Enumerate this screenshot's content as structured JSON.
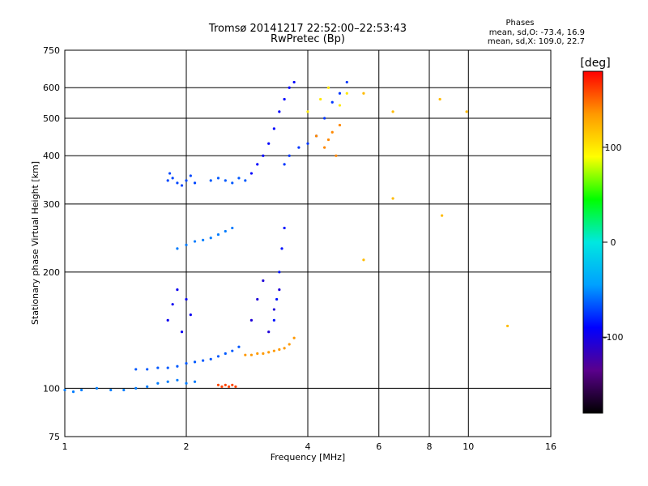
{
  "chart_data": {
    "type": "scatter",
    "title": "Tromsø 20141217 22:52:00–22:53:43",
    "subtitle": "RwPretec (Bp)",
    "xlabel": "Frequency [MHz]",
    "ylabel": "Stationary phase Virtual Height [km]",
    "x_scale": "log",
    "y_scale": "log",
    "xlim": [
      1,
      16
    ],
    "ylim": [
      75,
      750
    ],
    "x_ticks": [
      1,
      2,
      4,
      6,
      8,
      10,
      16
    ],
    "y_ticks": [
      75,
      100,
      200,
      300,
      400,
      500,
      600,
      750
    ],
    "grid": true,
    "stats": {
      "heading": "Phases",
      "line_o": "mean, sd,O: -73.4, 16.9",
      "line_x": "mean, sd,X: 109.0, 22.7"
    },
    "colorbar": {
      "label": "[deg]",
      "min": -180,
      "max": 180,
      "ticks": [
        100,
        0,
        -100
      ],
      "colors": [
        "#000000",
        "#5a008c",
        "#0000ff",
        "#00a0ff",
        "#00e8e0",
        "#00ff00",
        "#ffff00",
        "#ff9900",
        "#ff0000"
      ]
    },
    "series": [
      {
        "x": [
          1.0,
          1.05,
          1.1,
          1.2,
          1.3,
          1.4,
          1.5,
          1.6,
          1.7,
          1.8,
          1.9,
          2.0,
          2.1
        ],
        "y": [
          99,
          98,
          99,
          100,
          99,
          99,
          100,
          101,
          103,
          104,
          105,
          103,
          104
        ],
        "phase": -55
      },
      {
        "x": [
          1.5,
          1.6,
          1.7,
          1.8,
          1.9,
          2.0,
          2.1,
          2.2,
          2.3,
          2.4,
          2.5,
          2.6,
          2.7
        ],
        "y": [
          112,
          112,
          113,
          113,
          114,
          116,
          117,
          118,
          119,
          121,
          123,
          125,
          128
        ],
        "phase": -65
      },
      {
        "x": [
          2.8,
          2.9,
          3.0,
          3.1,
          3.2,
          3.3,
          3.4,
          3.5,
          3.6,
          3.7
        ],
        "y": [
          122,
          122,
          123,
          123,
          124,
          125,
          126,
          127,
          130,
          135
        ],
        "phase": 135
      },
      {
        "x": [
          2.4,
          2.45,
          2.5,
          2.55,
          2.6,
          2.65
        ],
        "y": [
          102,
          101,
          102,
          101,
          102,
          101
        ],
        "phase": 160
      },
      {
        "x": [
          1.8,
          1.82,
          1.85,
          1.9,
          1.95,
          2.0,
          2.05,
          2.1
        ],
        "y": [
          345,
          360,
          350,
          340,
          335,
          345,
          355,
          340
        ],
        "phase": -70
      },
      {
        "x": [
          2.3,
          2.4,
          2.5,
          2.6,
          2.7,
          2.8
        ],
        "y": [
          345,
          350,
          345,
          340,
          350,
          345
        ],
        "phase": -65
      },
      {
        "x": [
          2.9,
          3.0,
          3.1,
          3.2,
          3.3,
          3.4,
          3.5,
          3.6,
          3.7
        ],
        "y": [
          360,
          380,
          400,
          430,
          470,
          520,
          560,
          600,
          620
        ],
        "phase": -90
      },
      {
        "x": [
          3.5,
          3.6,
          3.8,
          4.0,
          4.2,
          4.4,
          4.6,
          4.8,
          5.0
        ],
        "y": [
          380,
          400,
          420,
          430,
          450,
          500,
          550,
          580,
          620
        ],
        "phase": -75
      },
      {
        "x": [
          4.2,
          4.4,
          4.5,
          4.6,
          4.7,
          4.8
        ],
        "y": [
          450,
          420,
          440,
          460,
          400,
          480
        ],
        "phase": 140
      },
      {
        "x": [
          4.0,
          4.3,
          4.5,
          4.8,
          5.0
        ],
        "y": [
          520,
          560,
          600,
          540,
          580
        ],
        "phase": 100
      },
      {
        "x": [
          1.8,
          1.85,
          1.9,
          1.95,
          2.0,
          2.05
        ],
        "y": [
          150,
          165,
          180,
          140,
          170,
          155
        ],
        "phase": -95
      },
      {
        "x": [
          2.9,
          3.0,
          3.1,
          3.2,
          3.3,
          3.4
        ],
        "y": [
          150,
          170,
          190,
          140,
          160,
          180
        ],
        "phase": -105
      },
      {
        "x": [
          3.3,
          3.35,
          3.4,
          3.45,
          3.5
        ],
        "y": [
          150,
          170,
          200,
          230,
          260
        ],
        "phase": -85
      },
      {
        "x": [
          1.9,
          2.0,
          2.1,
          2.2,
          2.3,
          2.4,
          2.5,
          2.6
        ],
        "y": [
          230,
          235,
          240,
          242,
          245,
          250,
          255,
          260
        ],
        "phase": -55
      },
      {
        "x": [
          6.5,
          6.5,
          8.5,
          8.6,
          9.9,
          5.5,
          5.5,
          12.5
        ],
        "y": [
          520,
          310,
          560,
          280,
          520,
          215,
          580,
          145
        ],
        "phase": 120
      }
    ]
  }
}
